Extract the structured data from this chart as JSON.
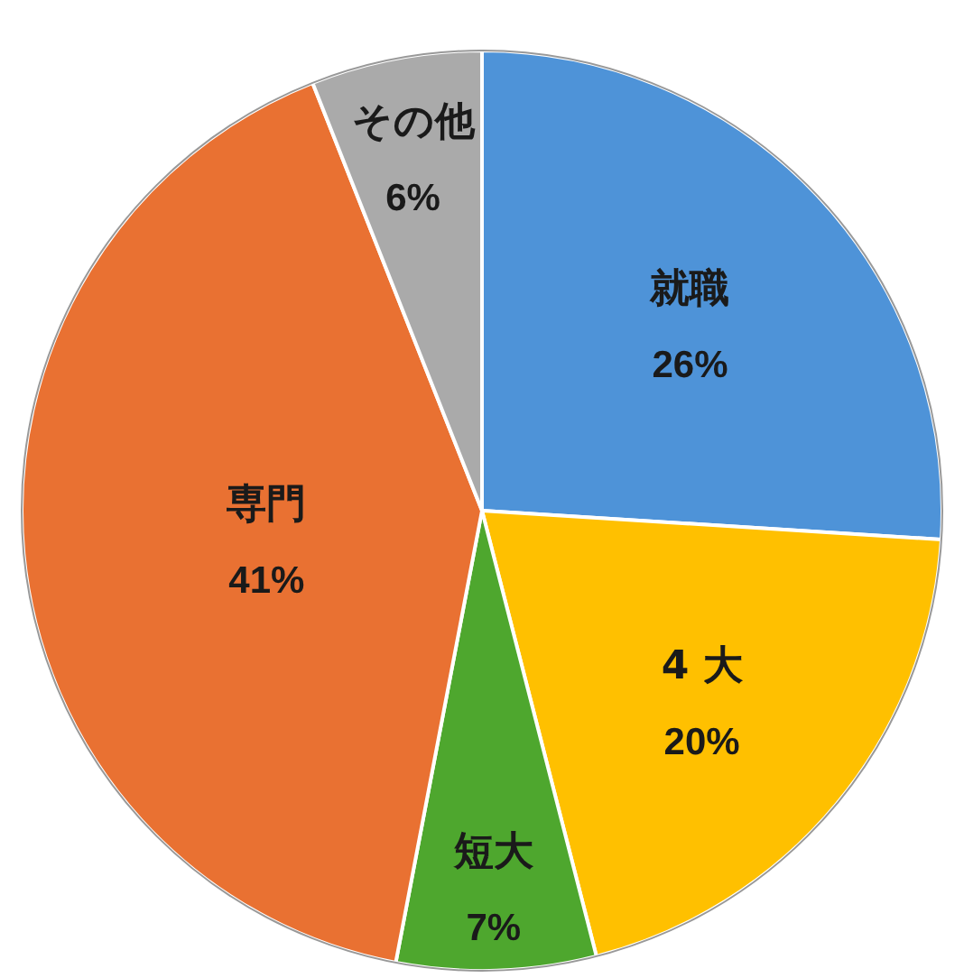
{
  "chart_data": {
    "type": "pie",
    "categories": [
      "就職",
      "4 大",
      "短大",
      "専門",
      "その他"
    ],
    "values": [
      26,
      20,
      7,
      41,
      6
    ],
    "colors": [
      "#4e93d8",
      "#ffc000",
      "#4ea72e",
      "#e97132",
      "#aaaaaa"
    ],
    "value_labels": [
      "26%",
      "20%",
      "7%",
      "41%",
      "6%"
    ]
  }
}
